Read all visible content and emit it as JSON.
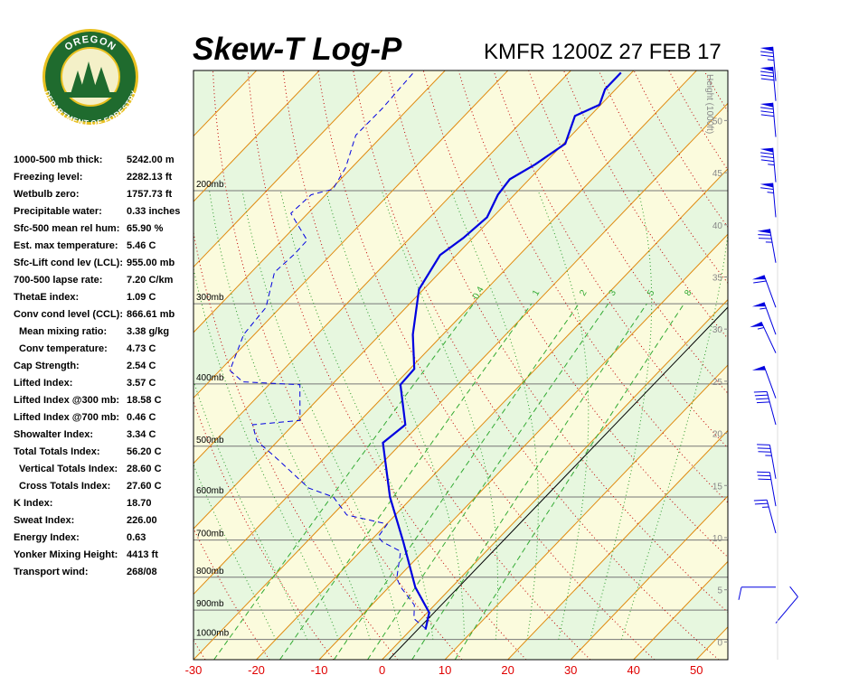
{
  "logo": {
    "top_text": "OREGON",
    "bottom_text": "DEPARTMENT OF FORESTRY"
  },
  "header": {
    "title": "Skew-T Log-P",
    "station": "KMFR 1200Z 27 FEB 17"
  },
  "indices": [
    {
      "label": "1000-500 mb thick:",
      "value": "5242.00 m"
    },
    {
      "label": "Freezing level:",
      "value": "2282.13 ft"
    },
    {
      "label": "Wetbulb zero:",
      "value": "1757.73 ft"
    },
    {
      "label": "Precipitable water:",
      "value": "0.33 inches"
    },
    {
      "label": "Sfc-500 mean rel hum:",
      "value": "65.90 %"
    },
    {
      "label": "Est. max temperature:",
      "value": "5.46 C"
    },
    {
      "label": "Sfc-Lift cond lev (LCL):",
      "value": "955.00 mb"
    },
    {
      "label": "700-500 lapse rate:",
      "value": "7.20 C/km"
    },
    {
      "label": "ThetaE index:",
      "value": "1.09 C"
    },
    {
      "label": "Conv cond level (CCL):",
      "value": "866.61 mb"
    },
    {
      "label": "Mean mixing ratio:",
      "value": "3.38 g/kg",
      "indent": true
    },
    {
      "label": "Conv temperature:",
      "value": "4.73 C",
      "indent": true
    },
    {
      "label": "Cap Strength:",
      "value": "2.54 C"
    },
    {
      "label": "Lifted Index:",
      "value": "3.57 C"
    },
    {
      "label": "Lifted Index @300 mb:",
      "value": "18.58 C"
    },
    {
      "label": "Lifted Index @700 mb:",
      "value": "0.46 C"
    },
    {
      "label": "Showalter Index:",
      "value": "3.34 C"
    },
    {
      "label": "Total Totals Index:",
      "value": "56.20 C"
    },
    {
      "label": "Vertical Totals Index:",
      "value": "28.60 C",
      "indent": true
    },
    {
      "label": "Cross Totals Index:",
      "value": "27.60 C",
      "indent": true
    },
    {
      "label": "K Index:",
      "value": "18.70"
    },
    {
      "label": "Sweat Index:",
      "value": "226.00"
    },
    {
      "label": "Energy Index:",
      "value": "0.63"
    },
    {
      "label": "Yonker Mixing Height:",
      "value": "4413 ft"
    },
    {
      "label": "Transport wind:",
      "value": "268/08"
    }
  ],
  "chart_data": {
    "type": "skewt",
    "xlim": [
      -30,
      55
    ],
    "xticks": [
      -30,
      -20,
      -10,
      0,
      10,
      20,
      30,
      40,
      50
    ],
    "xtick_color": "#e00000",
    "ylim": [
      1075,
      130
    ],
    "y_scale": "log",
    "yticks": [
      {
        "value": 1000,
        "label": "1000mb"
      },
      {
        "value": 900,
        "label": "900mb"
      },
      {
        "value": 800,
        "label": "800mb"
      },
      {
        "value": 700,
        "label": "700mb"
      },
      {
        "value": 600,
        "label": "600mb"
      },
      {
        "value": 500,
        "label": "500mb"
      },
      {
        "value": 400,
        "label": "400mb"
      },
      {
        "value": 300,
        "label": "300mb"
      },
      {
        "value": 200,
        "label": "200mb"
      }
    ],
    "y2_label": "Height (1000ft)",
    "y2lim": [
      -1.7,
      54.8
    ],
    "y2ticks": [
      0,
      5,
      10,
      15,
      20,
      25,
      30,
      35,
      40,
      45,
      50
    ],
    "mixing_ratio_lines": [
      0.4,
      1,
      2,
      3,
      5,
      8
    ],
    "series": [
      {
        "color": "#0000e0",
        "style": "solid",
        "pressure": [
          965,
          908,
          829,
          705,
          600,
          494,
          463,
          401,
          379,
          335,
          285,
          252,
          237,
          220,
          203,
          192,
          182,
          169,
          153,
          147,
          139,
          131
        ],
        "values": [
          2.3,
          0.3,
          -5.8,
          -14.6,
          -23.6,
          -33.0,
          -32.2,
          -39.1,
          -39.3,
          -44.8,
          -50.7,
          -52.6,
          -51.5,
          -50.9,
          -52.6,
          -53.1,
          -51.3,
          -49.7,
          -52.4,
          -50.2,
          -51.7,
          -51.7
        ]
      },
      {
        "color": "#0000e0",
        "style": "dashed",
        "pressure": [
          962,
          928,
          884,
          829,
          803,
          729,
          705,
          692,
          661,
          640,
          600,
          581,
          519,
          491,
          463,
          456,
          401,
          397,
          381,
          335,
          304,
          268,
          251,
          239,
          217,
          203,
          199,
          184,
          164,
          149,
          138,
          131
        ],
        "values": [
          2.2,
          -1.2,
          -3.2,
          -8.1,
          -10.1,
          -13.6,
          -17.9,
          -19.4,
          -19.9,
          -27.7,
          -32.6,
          -37.9,
          -48.1,
          -53.3,
          -56.5,
          -49.6,
          -55.1,
          -64.6,
          -68.4,
          -71.7,
          -72.3,
          -76.3,
          -75.9,
          -76.0,
          -82.7,
          -82.3,
          -79.7,
          -81.0,
          -84.3,
          -84.2,
          -84.5,
          -84.7
        ]
      }
    ],
    "winds": {
      "color": "#0000e0",
      "pressure": [
        943,
        829,
        683,
        620,
        562,
        463,
        421,
        358,
        335,
        304,
        259,
        220,
        194,
        165,
        145,
        135
      ],
      "direction": [
        40,
        270,
        345,
        350,
        350,
        345,
        340,
        335,
        340,
        340,
        350,
        355,
        355,
        355,
        355,
        355
      ],
      "speed": [
        10,
        10,
        25,
        30,
        35,
        40,
        50,
        55,
        55,
        60,
        75,
        65,
        85,
        80,
        80,
        75
      ]
    }
  }
}
